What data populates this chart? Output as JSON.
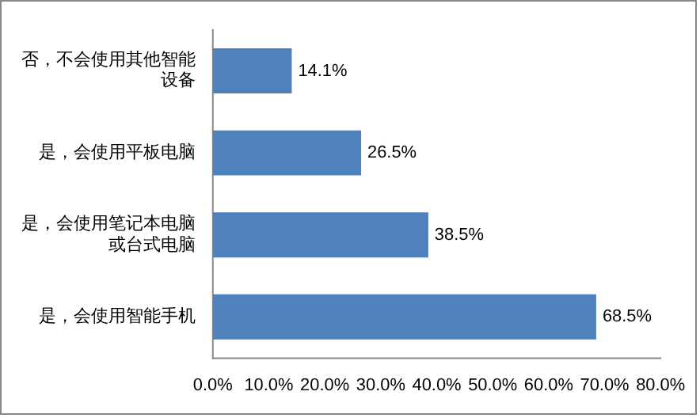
{
  "chart_data": {
    "type": "bar",
    "orientation": "horizontal",
    "categories": [
      "否，不会使用其他智能设备",
      "是，会使用平板电脑",
      "是，会使用笔记本电脑或台式电脑",
      "是，会使用智能手机"
    ],
    "values": [
      14.1,
      26.5,
      38.5,
      68.5
    ],
    "value_labels": [
      "14.1%",
      "26.5%",
      "38.5%",
      "68.5%"
    ],
    "color": "#4f81bd",
    "xlim": [
      0,
      80
    ],
    "xticks": [
      {
        "value": 0,
        "label": "0.0%"
      },
      {
        "value": 10,
        "label": "10.0%"
      },
      {
        "value": 20,
        "label": "20.0%"
      },
      {
        "value": 30,
        "label": "30.0%"
      },
      {
        "value": 40,
        "label": "40.0%"
      },
      {
        "value": 50,
        "label": "50.0%"
      },
      {
        "value": 60,
        "label": "60.0%"
      },
      {
        "value": 70,
        "label": "70.0%"
      },
      {
        "value": 80,
        "label": "80.0%"
      }
    ],
    "grid": false,
    "legend": false
  }
}
